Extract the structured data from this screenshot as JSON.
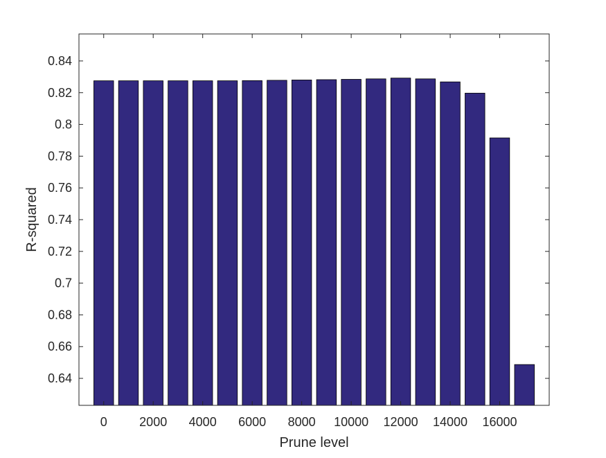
{
  "chart_data": {
    "type": "bar",
    "xlabel": "Prune level",
    "ylabel": "R-squared",
    "x": [
      0,
      1000,
      2000,
      3000,
      4000,
      5000,
      6000,
      7000,
      8000,
      9000,
      10000,
      11000,
      12000,
      13000,
      14000,
      15000,
      16000,
      17000
    ],
    "values": [
      0.8275,
      0.8275,
      0.8275,
      0.8275,
      0.8275,
      0.8275,
      0.8276,
      0.8278,
      0.828,
      0.8282,
      0.8284,
      0.8287,
      0.8292,
      0.8287,
      0.8268,
      0.8197,
      0.7915,
      0.6487
    ],
    "xticks": [
      0,
      2000,
      4000,
      6000,
      8000,
      10000,
      12000,
      14000,
      16000
    ],
    "yticks": [
      0.64,
      0.66,
      0.68,
      0.7,
      0.72,
      0.74,
      0.76,
      0.78,
      0.8,
      0.82,
      0.84
    ],
    "xlim": [
      -1000,
      18000
    ],
    "ylim": [
      0.623,
      0.857
    ],
    "grid": false,
    "colors": {
      "bar": "#32297f",
      "bar_edge": "#000000",
      "axis": "#262626"
    }
  }
}
